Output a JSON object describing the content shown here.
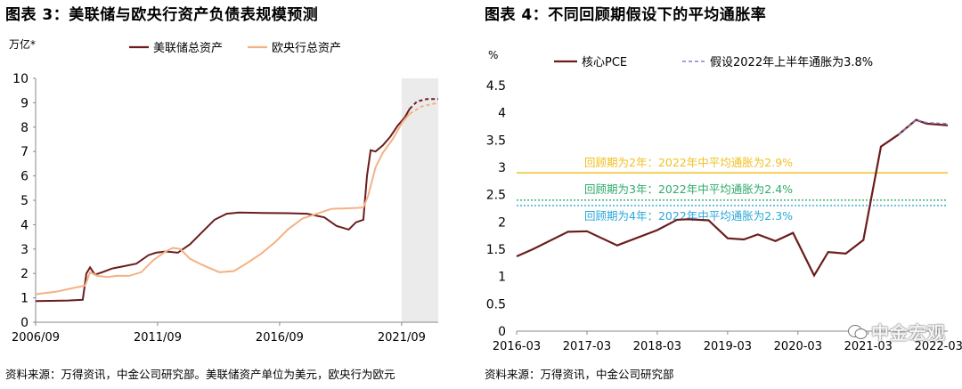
{
  "left": {
    "title": "图表 3：美联储与欧央行资产负债表规模预测",
    "source": "资料来源：万得资讯，中金公司研究部。美联储资产单位为美元，欧央行为欧元",
    "chart_data": {
      "type": "line",
      "unit_label": "万亿*",
      "ylim": [
        0,
        10
      ],
      "yticks": [
        "0",
        "1",
        "2",
        "3",
        "4",
        "5",
        "6",
        "7",
        "8",
        "9",
        "10"
      ],
      "xlim": [
        2006.67,
        2023.17
      ],
      "xticks": [
        {
          "label": "2006/09",
          "value": 2006.67
        },
        {
          "label": "2011/09",
          "value": 2011.67
        },
        {
          "label": "2016/09",
          "value": 2016.67
        },
        {
          "label": "2021/09",
          "value": 2021.67
        }
      ],
      "shaded_region": [
        2021.67,
        2023.17
      ],
      "legend_position": "top",
      "series": [
        {
          "name": "美联储总资产",
          "color": "#6b1d1d",
          "points": [
            [
              2006.67,
              0.87
            ],
            [
              2007.5,
              0.88
            ],
            [
              2008.0,
              0.89
            ],
            [
              2008.6,
              0.92
            ],
            [
              2008.75,
              2.0
            ],
            [
              2008.9,
              2.25
            ],
            [
              2009.1,
              1.95
            ],
            [
              2009.4,
              2.05
            ],
            [
              2009.8,
              2.2
            ],
            [
              2010.3,
              2.3
            ],
            [
              2010.8,
              2.4
            ],
            [
              2011.3,
              2.75
            ],
            [
              2011.6,
              2.85
            ],
            [
              2012.0,
              2.9
            ],
            [
              2012.5,
              2.85
            ],
            [
              2013.0,
              3.2
            ],
            [
              2013.5,
              3.7
            ],
            [
              2014.0,
              4.2
            ],
            [
              2014.5,
              4.45
            ],
            [
              2015.0,
              4.5
            ],
            [
              2016.0,
              4.48
            ],
            [
              2017.0,
              4.47
            ],
            [
              2017.8,
              4.45
            ],
            [
              2018.5,
              4.3
            ],
            [
              2019.0,
              3.95
            ],
            [
              2019.5,
              3.8
            ],
            [
              2019.8,
              4.1
            ],
            [
              2020.1,
              4.2
            ],
            [
              2020.25,
              6.0
            ],
            [
              2020.4,
              7.05
            ],
            [
              2020.6,
              7.0
            ],
            [
              2020.9,
              7.25
            ],
            [
              2021.2,
              7.6
            ],
            [
              2021.5,
              8.05
            ],
            [
              2021.8,
              8.4
            ],
            [
              2022.0,
              8.75
            ]
          ],
          "forecast": [
            [
              2022.0,
              8.75
            ],
            [
              2022.3,
              9.05
            ],
            [
              2022.7,
              9.15
            ],
            [
              2023.17,
              9.15
            ]
          ]
        },
        {
          "name": "欧央行总资产",
          "color": "#f4b183",
          "points": [
            [
              2006.67,
              1.15
            ],
            [
              2007.5,
              1.25
            ],
            [
              2008.2,
              1.4
            ],
            [
              2008.7,
              1.5
            ],
            [
              2008.9,
              2.05
            ],
            [
              2009.2,
              1.9
            ],
            [
              2009.6,
              1.85
            ],
            [
              2010.0,
              1.9
            ],
            [
              2010.5,
              1.9
            ],
            [
              2011.0,
              2.05
            ],
            [
              2011.5,
              2.55
            ],
            [
              2012.0,
              2.9
            ],
            [
              2012.3,
              3.05
            ],
            [
              2012.6,
              3.0
            ],
            [
              2013.0,
              2.6
            ],
            [
              2013.5,
              2.35
            ],
            [
              2014.2,
              2.05
            ],
            [
              2014.8,
              2.1
            ],
            [
              2015.3,
              2.4
            ],
            [
              2015.9,
              2.8
            ],
            [
              2016.5,
              3.3
            ],
            [
              2017.0,
              3.8
            ],
            [
              2017.6,
              4.25
            ],
            [
              2018.2,
              4.45
            ],
            [
              2018.8,
              4.65
            ],
            [
              2019.5,
              4.67
            ],
            [
              2020.1,
              4.7
            ],
            [
              2020.3,
              5.2
            ],
            [
              2020.6,
              6.35
            ],
            [
              2020.9,
              6.95
            ],
            [
              2021.3,
              7.5
            ],
            [
              2021.7,
              8.2
            ],
            [
              2022.0,
              8.55
            ]
          ],
          "forecast": [
            [
              2022.0,
              8.55
            ],
            [
              2022.5,
              8.85
            ],
            [
              2023.17,
              9.0
            ]
          ]
        }
      ]
    }
  },
  "right": {
    "title": "图表 4：不同回顾期假设下的平均通胀率",
    "source": "资料来源：万得资讯，中金公司研究部",
    "chart_data": {
      "type": "line",
      "unit_label": "%",
      "ylim": [
        0,
        4.5
      ],
      "yticks": [
        "0",
        "0.5",
        "1",
        "1.5",
        "2",
        "2.5",
        "3",
        "3.5",
        "4",
        "4.5"
      ],
      "xlim": [
        2016.17,
        2022.3
      ],
      "xticks": [
        {
          "label": "2016-03",
          "value": 2016.17
        },
        {
          "label": "2017-03",
          "value": 2017.17
        },
        {
          "label": "2018-03",
          "value": 2018.17
        },
        {
          "label": "2019-03",
          "value": 2019.17
        },
        {
          "label": "2020-03",
          "value": 2020.17
        },
        {
          "label": "2021-03",
          "value": 2021.17
        },
        {
          "label": "2022-03",
          "value": 2022.17
        }
      ],
      "legend_position": "top",
      "series": [
        {
          "name": "核心PCE",
          "color": "#6b1d1d",
          "points": [
            [
              2016.17,
              1.37
            ],
            [
              2016.4,
              1.5
            ],
            [
              2016.9,
              1.82
            ],
            [
              2017.17,
              1.83
            ],
            [
              2017.6,
              1.57
            ],
            [
              2018.17,
              1.85
            ],
            [
              2018.45,
              2.04
            ],
            [
              2018.6,
              2.05
            ],
            [
              2018.9,
              2.03
            ],
            [
              2019.17,
              1.7
            ],
            [
              2019.4,
              1.68
            ],
            [
              2019.6,
              1.77
            ],
            [
              2019.85,
              1.65
            ],
            [
              2020.1,
              1.8
            ],
            [
              2020.4,
              1.02
            ],
            [
              2020.6,
              1.45
            ],
            [
              2020.85,
              1.42
            ],
            [
              2021.1,
              1.67
            ],
            [
              2021.35,
              3.38
            ],
            [
              2021.6,
              3.6
            ],
            [
              2021.85,
              3.87
            ],
            [
              2022.0,
              3.8
            ],
            [
              2022.3,
              3.77
            ]
          ]
        },
        {
          "name": "假设2022年上半年通胀为3.8%",
          "color": "#8b7fc7",
          "dashed": true,
          "points": [
            [
              2021.6,
              3.6
            ],
            [
              2021.85,
              3.87
            ],
            [
              2022.0,
              3.82
            ],
            [
              2022.3,
              3.8
            ]
          ]
        }
      ],
      "reference_lines": [
        {
          "label": "回顾期为2年：2022年中平均通胀为2.9%",
          "value": 2.9,
          "color": "#f0c020",
          "style": "solid"
        },
        {
          "label": "回顾期为3年：2022年中平均通胀为2.4%",
          "value": 2.4,
          "color": "#2eaa6a",
          "style": "dotted"
        },
        {
          "label": "回顾期为4年：2022年中平均通胀为2.3%",
          "value": 2.3,
          "color": "#2aa7d8",
          "style": "dotted"
        }
      ]
    }
  },
  "watermark": {
    "text": "中金宏观"
  }
}
